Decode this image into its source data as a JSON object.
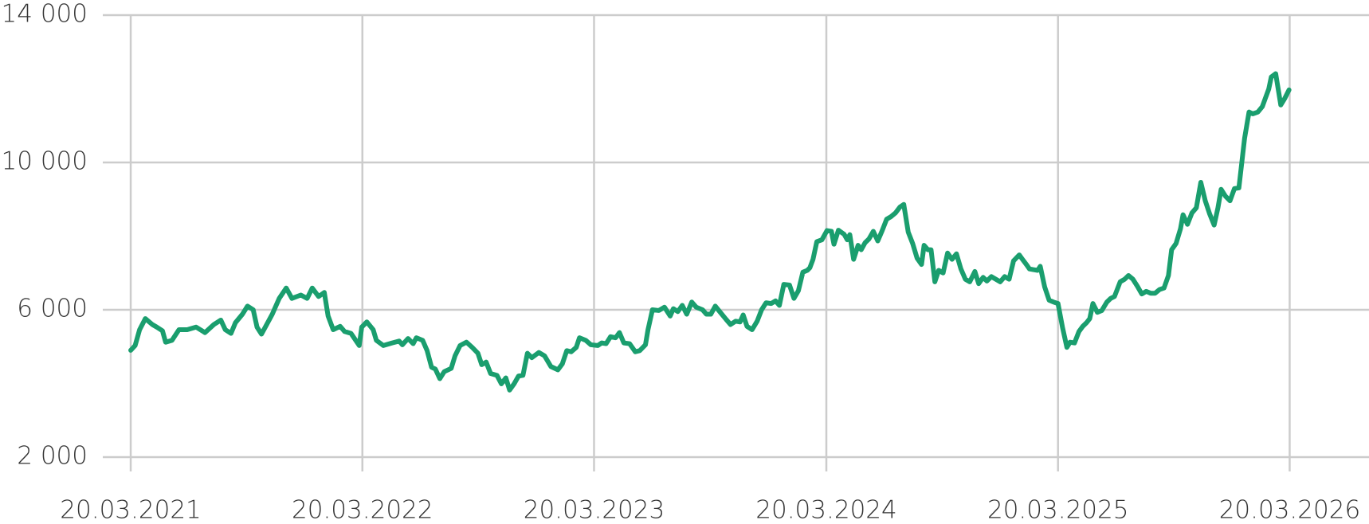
{
  "chart_data": {
    "type": "line",
    "x": [
      "2021-03-20",
      "2021-03-27",
      "2021-04-03",
      "2021-04-12",
      "2021-04-23",
      "2021-04-30",
      "2021-05-09",
      "2021-05-14",
      "2021-05-24",
      "2021-06-04",
      "2021-06-17",
      "2021-07-01",
      "2021-07-15",
      "2021-07-29",
      "2021-08-09",
      "2021-08-16",
      "2021-08-25",
      "2021-09-01",
      "2021-09-12",
      "2021-09-20",
      "2021-09-29",
      "2021-10-05",
      "2021-10-12",
      "2021-10-19",
      "2021-10-29",
      "2021-11-09",
      "2021-11-20",
      "2021-11-29",
      "2021-12-13",
      "2021-12-23",
      "2021-12-31",
      "2022-01-10",
      "2022-01-19",
      "2022-01-25",
      "2022-02-02",
      "2022-02-13",
      "2022-02-20",
      "2022-03-02",
      "2022-03-15",
      "2022-03-19",
      "2022-03-27",
      "2022-04-06",
      "2022-04-11",
      "2022-04-22",
      "2022-05-06",
      "2022-05-17",
      "2022-05-22",
      "2022-05-31",
      "2022-06-08",
      "2022-06-13",
      "2022-06-23",
      "2022-06-30",
      "2022-07-07",
      "2022-07-13",
      "2022-07-20",
      "2022-07-27",
      "2022-08-07",
      "2022-08-13",
      "2022-08-21",
      "2022-08-31",
      "2022-09-09",
      "2022-09-18",
      "2022-09-24",
      "2022-10-01",
      "2022-10-08",
      "2022-10-18",
      "2022-10-25",
      "2022-11-01",
      "2022-11-07",
      "2022-11-14",
      "2022-11-21",
      "2022-11-28",
      "2022-12-05",
      "2022-12-12",
      "2022-12-23",
      "2023-01-01",
      "2023-01-11",
      "2023-01-22",
      "2023-01-29",
      "2023-02-05",
      "2023-02-12",
      "2023-02-20",
      "2023-02-25",
      "2023-03-07",
      "2023-03-15",
      "2023-03-26",
      "2023-04-01",
      "2023-04-08",
      "2023-04-15",
      "2023-04-23",
      "2023-04-29",
      "2023-05-06",
      "2023-05-15",
      "2023-05-24",
      "2023-05-31",
      "2023-06-09",
      "2023-06-13",
      "2023-06-20",
      "2023-06-30",
      "2023-07-09",
      "2023-07-18",
      "2023-07-23",
      "2023-07-30",
      "2023-08-06",
      "2023-08-13",
      "2023-08-21",
      "2023-08-28",
      "2023-09-07",
      "2023-09-13",
      "2023-09-20",
      "2023-09-27",
      "2023-10-04",
      "2023-10-14",
      "2023-10-21",
      "2023-10-29",
      "2023-11-05",
      "2023-11-10",
      "2023-11-16",
      "2023-11-24",
      "2023-12-02",
      "2023-12-09",
      "2023-12-16",
      "2023-12-24",
      "2023-12-31",
      "2024-01-06",
      "2024-01-13",
      "2024-01-22",
      "2024-01-29",
      "2024-02-05",
      "2024-02-12",
      "2024-02-19",
      "2024-02-23",
      "2024-02-28",
      "2024-03-05",
      "2024-03-13",
      "2024-03-21",
      "2024-03-28",
      "2024-04-01",
      "2024-04-08",
      "2024-04-17",
      "2024-04-22",
      "2024-04-26",
      "2024-05-02",
      "2024-05-09",
      "2024-05-14",
      "2024-05-20",
      "2024-05-26",
      "2024-06-02",
      "2024-06-09",
      "2024-06-16",
      "2024-06-23",
      "2024-06-30",
      "2024-07-07",
      "2024-07-14",
      "2024-07-20",
      "2024-07-27",
      "2024-08-03",
      "2024-08-10",
      "2024-08-17",
      "2024-08-21",
      "2024-08-27",
      "2024-09-01",
      "2024-09-07",
      "2024-09-13",
      "2024-09-20",
      "2024-09-27",
      "2024-10-04",
      "2024-10-11",
      "2024-10-18",
      "2024-10-25",
      "2024-11-01",
      "2024-11-09",
      "2024-11-15",
      "2024-11-22",
      "2024-11-28",
      "2024-12-05",
      "2024-12-12",
      "2024-12-19",
      "2024-12-26",
      "2025-01-02",
      "2025-01-09",
      "2025-01-18",
      "2025-01-23",
      "2025-01-30",
      "2025-02-03",
      "2025-02-09",
      "2025-02-16",
      "2025-02-20",
      "2025-02-27",
      "2025-03-06",
      "2025-03-13",
      "2025-03-20",
      "2025-03-27",
      "2025-04-03",
      "2025-04-08",
      "2025-04-15",
      "2025-04-22",
      "2025-04-28",
      "2025-05-04",
      "2025-05-09",
      "2025-05-14",
      "2025-05-21",
      "2025-05-28",
      "2025-06-05",
      "2025-06-11",
      "2025-06-17",
      "2025-06-26",
      "2025-07-03",
      "2025-07-09",
      "2025-07-16",
      "2025-07-23",
      "2025-07-30",
      "2025-08-06",
      "2025-08-13",
      "2025-08-20",
      "2025-08-27",
      "2025-09-03",
      "2025-09-10",
      "2025-09-15",
      "2025-09-22",
      "2025-09-29",
      "2025-10-03",
      "2025-10-10",
      "2025-10-17",
      "2025-10-24",
      "2025-10-31",
      "2025-11-07",
      "2025-11-14",
      "2025-11-21",
      "2025-11-27",
      "2025-12-02",
      "2025-12-09",
      "2025-12-16",
      "2025-12-23",
      "2025-12-30",
      "2026-01-03",
      "2026-01-08",
      "2026-01-15",
      "2026-01-21",
      "2026-01-29",
      "2026-02-05",
      "2026-02-09",
      "2026-02-15",
      "2026-02-19",
      "2026-02-26",
      "2026-03-06",
      "2026-03-12",
      "2026-03-19"
    ],
    "series": [
      {
        "color": "#1a9e6e",
        "values": [
          4900,
          5030,
          5460,
          5760,
          5600,
          5530,
          5430,
          5120,
          5170,
          5460,
          5460,
          5530,
          5380,
          5600,
          5720,
          5460,
          5360,
          5650,
          5880,
          6100,
          6000,
          5530,
          5340,
          5560,
          5880,
          6310,
          6590,
          6310,
          6400,
          6310,
          6590,
          6360,
          6470,
          5830,
          5460,
          5550,
          5410,
          5360,
          5030,
          5530,
          5670,
          5460,
          5170,
          5030,
          5100,
          5150,
          5050,
          5220,
          5080,
          5240,
          5170,
          4890,
          4440,
          4390,
          4130,
          4320,
          4410,
          4750,
          5030,
          5120,
          4980,
          4820,
          4510,
          4580,
          4270,
          4220,
          3990,
          4150,
          3820,
          3990,
          4200,
          4220,
          4820,
          4700,
          4840,
          4750,
          4460,
          4370,
          4530,
          4890,
          4860,
          4980,
          5240,
          5170,
          5050,
          5030,
          5100,
          5080,
          5270,
          5240,
          5380,
          5100,
          5080,
          4860,
          4890,
          5050,
          5460,
          6000,
          5980,
          6070,
          5830,
          6030,
          5950,
          6120,
          5880,
          6210,
          6070,
          6000,
          5880,
          5880,
          6100,
          5950,
          5740,
          5600,
          5690,
          5670,
          5860,
          5550,
          5460,
          5690,
          6000,
          6190,
          6170,
          6240,
          6120,
          6690,
          6670,
          6310,
          6520,
          7020,
          7070,
          7140,
          7370,
          7850,
          7900,
          8150,
          8130,
          7780,
          8160,
          8050,
          7900,
          8040,
          7370,
          7750,
          7630,
          7820,
          7920,
          8130,
          7870,
          8150,
          8460,
          8530,
          8630,
          8790,
          8860,
          8110,
          7800,
          7400,
          7230,
          7750,
          7630,
          7630,
          6760,
          7070,
          7000,
          7540,
          7370,
          7520,
          7110,
          6830,
          6760,
          7040,
          6710,
          6880,
          6780,
          6900,
          6830,
          6760,
          6900,
          6830,
          7330,
          7490,
          7370,
          7210,
          7110,
          7090,
          7070,
          7180,
          6620,
          6260,
          6210,
          6170,
          5530,
          4980,
          5120,
          5100,
          5410,
          5550,
          5650,
          5760,
          6170,
          5930,
          5980,
          6210,
          6310,
          6360,
          6760,
          6830,
          6930,
          6830,
          6640,
          6430,
          6500,
          6450,
          6450,
          6550,
          6590,
          6930,
          7630,
          7800,
          8200,
          8580,
          8320,
          8630,
          8770,
          9460,
          8960,
          8600,
          8300,
          8770,
          9270,
          9080,
          8960,
          9290,
          9310,
          9910,
          10660,
          11370,
          11320,
          11370,
          11520,
          11710,
          11990,
          12320,
          12410,
          11560,
          11730,
          11970
        ]
      }
    ],
    "xlim": [
      "2021-02-04",
      "2026-07-23"
    ],
    "xticks": [
      {
        "value": "2021-03-20",
        "label": "20.03.2021"
      },
      {
        "value": "2022-03-20",
        "label": "20.03.2022"
      },
      {
        "value": "2023-03-20",
        "label": "20.03.2023"
      },
      {
        "value": "2024-03-20",
        "label": "20.03.2024"
      },
      {
        "value": "2025-03-20",
        "label": "20.03.2025"
      },
      {
        "value": "2026-03-20",
        "label": "20.03.2026"
      }
    ],
    "ylim": [
      2000,
      14000
    ],
    "yticks": [
      {
        "value": 2000,
        "label": "2 000"
      },
      {
        "value": 6000,
        "label": "6 000"
      },
      {
        "value": 10000,
        "label": "10 000"
      },
      {
        "value": 14000,
        "label": "14 000"
      }
    ],
    "grid": true
  }
}
